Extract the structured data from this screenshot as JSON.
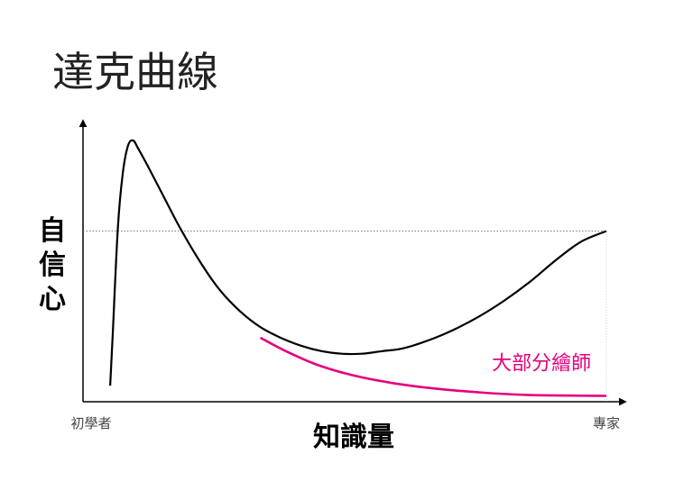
{
  "chart_data": {
    "type": "line",
    "title": "達克曲線",
    "ylabel": "自信心",
    "xlabel": "知識量",
    "x_ticks": [
      "初學者",
      "專家"
    ],
    "xlim": [
      0,
      100
    ],
    "ylim": [
      0,
      100
    ],
    "grid": false,
    "reference_line": {
      "y": 64
    },
    "colors": {
      "main_series": "#000000",
      "highlight_series": "#e6007e",
      "axis": "#000000",
      "reference": "#666666"
    },
    "series": [
      {
        "points": [
          [
            2.5,
            6
          ],
          [
            3,
            25
          ],
          [
            4,
            65
          ],
          [
            5,
            86
          ],
          [
            6,
            96
          ],
          [
            7,
            98
          ],
          [
            8,
            95
          ],
          [
            10,
            88
          ],
          [
            13,
            77
          ],
          [
            16,
            66
          ],
          [
            20,
            53
          ],
          [
            24,
            42
          ],
          [
            28,
            34
          ],
          [
            32,
            28
          ],
          [
            36,
            24
          ],
          [
            40,
            21
          ],
          [
            44,
            19
          ],
          [
            48,
            18
          ],
          [
            52,
            18
          ],
          [
            56,
            19
          ],
          [
            60,
            20
          ],
          [
            65,
            23
          ],
          [
            70,
            27
          ],
          [
            75,
            32
          ],
          [
            80,
            38
          ],
          [
            85,
            45
          ],
          [
            90,
            53
          ],
          [
            95,
            60
          ],
          [
            100,
            64
          ]
        ]
      },
      {
        "name": "大部分繪師",
        "points": [
          [
            32,
            24
          ],
          [
            37,
            19
          ],
          [
            43,
            14
          ],
          [
            50,
            10
          ],
          [
            58,
            7
          ],
          [
            66,
            5
          ],
          [
            75,
            3.5
          ],
          [
            85,
            2.5
          ],
          [
            100,
            2.2
          ]
        ]
      }
    ],
    "annotations": [
      {
        "text": "大部分繪師",
        "x": 97,
        "y": 12,
        "series": 1
      }
    ]
  }
}
